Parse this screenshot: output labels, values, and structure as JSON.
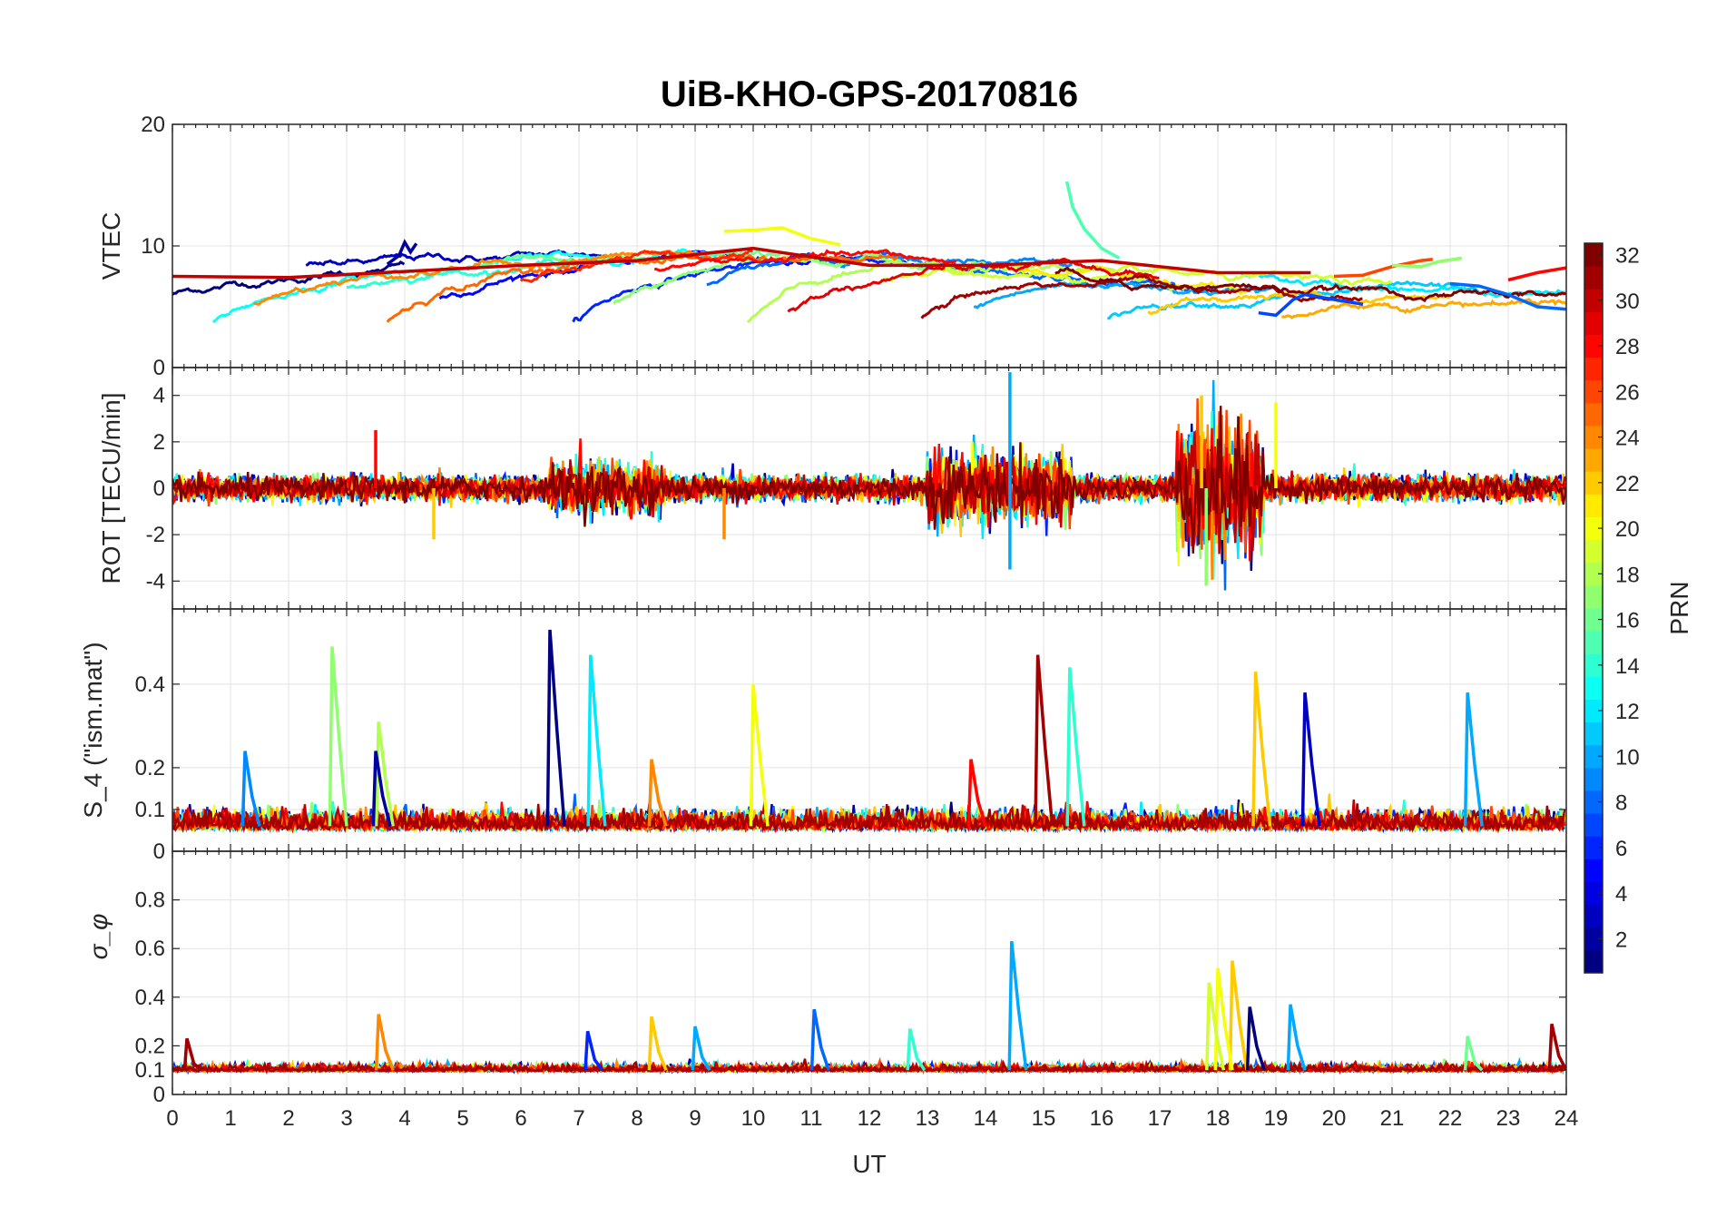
{
  "chart_data": [
    {
      "type": "line",
      "panel": "vtec",
      "title": "UiB-KHO-GPS-20170816",
      "ylabel": "VTEC",
      "xlim": [
        0,
        24
      ],
      "ylim": [
        0,
        20
      ],
      "yticks": [
        0,
        10,
        20
      ],
      "grid": true,
      "series_color_by": "PRN",
      "description_of_data": "Many overlapping PRN traces, values between about 4 and 15 TECU",
      "series": [
        {
          "name": "PRN 2",
          "x": [
            3.7,
            3.9,
            4.0,
            4.1,
            4.2
          ],
          "y": [
            8.5,
            9.2,
            10.3,
            9.5,
            10.2
          ]
        },
        {
          "name": "PRN 15",
          "x": [
            15.4,
            15.5,
            15.7,
            16.0,
            16.3
          ],
          "y": [
            15.3,
            13.2,
            11.4,
            9.8,
            9.0
          ]
        },
        {
          "name": "PRN 30",
          "x": [
            0,
            2,
            4,
            6,
            8,
            10,
            12,
            14,
            16,
            18,
            19.6
          ],
          "y": [
            7.5,
            7.4,
            7.9,
            8.4,
            8.8,
            9.8,
            8.4,
            8.4,
            8.8,
            7.8,
            7.8
          ]
        },
        {
          "name": "PRN 20",
          "x": [
            9.5,
            10.0,
            10.5,
            11.0,
            11.5
          ],
          "y": [
            11.2,
            11.3,
            11.5,
            10.6,
            10.1
          ]
        },
        {
          "name": "PRN 7",
          "x": [
            18.7,
            19.0,
            19.3,
            19.5,
            20.0,
            20.5
          ],
          "y": [
            4.5,
            4.3,
            5.6,
            6.0,
            5.6,
            5.2
          ]
        },
        {
          "name": "PRN 26",
          "x": [
            20.0,
            20.5,
            21.0,
            21.5,
            21.7
          ],
          "y": [
            7.5,
            7.6,
            8.3,
            8.8,
            8.9
          ]
        },
        {
          "name": "PRN 17",
          "x": [
            21.0,
            21.5,
            21.8,
            22.2
          ],
          "y": [
            8.4,
            8.3,
            8.7,
            9.0
          ]
        },
        {
          "name": "PRN 8",
          "x": [
            22.0,
            22.5,
            23.0,
            23.5,
            24.0
          ],
          "y": [
            6.9,
            6.7,
            6.0,
            5.0,
            4.8
          ]
        },
        {
          "name": "PRN 28",
          "x": [
            23.0,
            23.5,
            24.0
          ],
          "y": [
            7.2,
            7.8,
            8.2
          ]
        }
      ]
    },
    {
      "type": "line",
      "panel": "rot",
      "ylabel": "ROT [TECU/min]",
      "xlim": [
        0,
        24
      ],
      "ylim": [
        -5.2,
        5.2
      ],
      "yticks": [
        -4,
        -2,
        0,
        2,
        4
      ],
      "grid": true,
      "description_of_data": "Noisy rate of TEC around 0; strongest activity ~14.4 UT (up to ~5) and 17.5-18.5 UT (between about -4.2 and 4)",
      "notable_peaks": [
        {
          "x": 14.42,
          "y": 5.0,
          "prn": 10
        },
        {
          "x": 14.42,
          "y": -3.5,
          "prn": 10
        },
        {
          "x": 17.72,
          "y": 4.0,
          "prn": 22
        },
        {
          "x": 17.8,
          "y": -4.2,
          "prn": 17
        },
        {
          "x": 19.0,
          "y": 3.7,
          "prn": 20
        },
        {
          "x": 3.5,
          "y": 2.5,
          "prn": 28
        },
        {
          "x": 4.5,
          "y": -2.2,
          "prn": 22
        },
        {
          "x": 9.5,
          "y": -2.2,
          "prn": 24
        }
      ]
    },
    {
      "type": "line",
      "panel": "s4",
      "ylabel": "S_4 (\"ism.mat\")",
      "xlim": [
        0,
        24
      ],
      "ylim": [
        0,
        0.58
      ],
      "yticks": [
        0,
        0.1,
        0.2,
        0.4
      ],
      "grid": true,
      "description_of_data": "S4 baseline about 0.03-0.1 with spikes",
      "notable_peaks": [
        {
          "x": 6.5,
          "y": 0.53,
          "prn": 1
        },
        {
          "x": 2.75,
          "y": 0.49,
          "prn": 17
        },
        {
          "x": 7.2,
          "y": 0.47,
          "prn": 12
        },
        {
          "x": 14.9,
          "y": 0.47,
          "prn": 31
        },
        {
          "x": 15.45,
          "y": 0.44,
          "prn": 14
        },
        {
          "x": 18.65,
          "y": 0.43,
          "prn": 22
        },
        {
          "x": 10.0,
          "y": 0.4,
          "prn": 20
        },
        {
          "x": 22.3,
          "y": 0.38,
          "prn": 10
        },
        {
          "x": 19.5,
          "y": 0.38,
          "prn": 3
        },
        {
          "x": 3.55,
          "y": 0.31,
          "prn": 18
        },
        {
          "x": 1.25,
          "y": 0.24,
          "prn": 9
        },
        {
          "x": 3.5,
          "y": 0.24,
          "prn": 2
        },
        {
          "x": 8.25,
          "y": 0.22,
          "prn": 24
        },
        {
          "x": 13.75,
          "y": 0.22,
          "prn": 28
        }
      ]
    },
    {
      "type": "line",
      "panel": "sigma_phi",
      "ylabel": "σ_φ",
      "xlabel": "UT",
      "xlim": [
        0,
        24
      ],
      "ylim": [
        0,
        1.0
      ],
      "yticks": [
        0,
        0.1,
        0.2,
        0.4,
        0.6,
        0.8
      ],
      "xticks": [
        0,
        1,
        2,
        3,
        4,
        5,
        6,
        7,
        8,
        9,
        10,
        11,
        12,
        13,
        14,
        15,
        16,
        17,
        18,
        19,
        20,
        21,
        22,
        23,
        24
      ],
      "grid": true,
      "description_of_data": "Phase scintillation baseline about 0.08-0.12 with spikes",
      "notable_peaks": [
        {
          "x": 14.45,
          "y": 0.63,
          "prn": 10
        },
        {
          "x": 18.25,
          "y": 0.55,
          "prn": 22
        },
        {
          "x": 18.0,
          "y": 0.52,
          "prn": 20
        },
        {
          "x": 17.85,
          "y": 0.46,
          "prn": 19
        },
        {
          "x": 19.25,
          "y": 0.37,
          "prn": 10
        },
        {
          "x": 18.55,
          "y": 0.36,
          "prn": 1
        },
        {
          "x": 11.05,
          "y": 0.35,
          "prn": 8
        },
        {
          "x": 3.55,
          "y": 0.33,
          "prn": 24
        },
        {
          "x": 8.25,
          "y": 0.32,
          "prn": 22
        },
        {
          "x": 23.75,
          "y": 0.29,
          "prn": 31
        },
        {
          "x": 9.0,
          "y": 0.28,
          "prn": 10
        },
        {
          "x": 12.7,
          "y": 0.27,
          "prn": 14
        },
        {
          "x": 7.15,
          "y": 0.26,
          "prn": 6
        },
        {
          "x": 22.3,
          "y": 0.24,
          "prn": 16
        },
        {
          "x": 0.25,
          "y": 0.23,
          "prn": 31
        }
      ]
    }
  ],
  "colorbar": {
    "label": "PRN",
    "range": [
      1,
      32
    ],
    "ticks": [
      2,
      4,
      6,
      8,
      10,
      12,
      14,
      16,
      18,
      20,
      22,
      24,
      26,
      28,
      30,
      32
    ],
    "colormap": "jet"
  }
}
